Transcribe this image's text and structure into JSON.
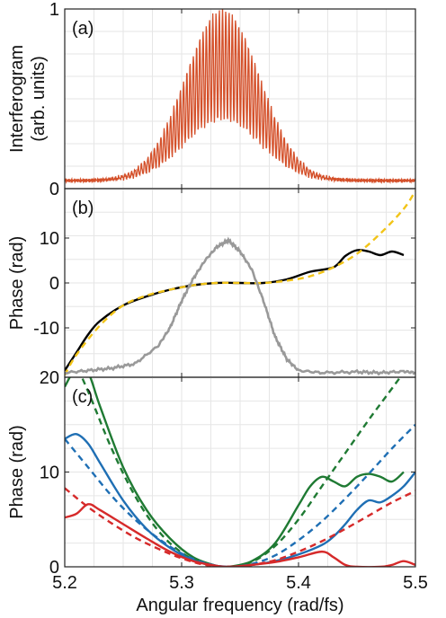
{
  "chart_data": [
    {
      "panel_label": "(a)",
      "type": "line",
      "xlim": [
        5.2,
        5.5
      ],
      "ylim": [
        0,
        1
      ],
      "grid": true,
      "xlabel": "",
      "ylabel": [
        "Interferogram",
        "(arb. units)"
      ],
      "x_ticks": [
        5.2,
        5.3,
        5.4,
        5.5
      ],
      "y_ticks": [
        0,
        1
      ],
      "y_tick_labels": [
        "0",
        "1"
      ],
      "series": [
        {
          "color": "#d4502a",
          "model": "gaussian_fringes",
          "center": 5.335,
          "sigma": 0.032,
          "peak": 1.0,
          "baseline": 0.045,
          "fringe_count_per_unit": 360,
          "x": [
            5.2,
            5.23,
            5.26,
            5.28,
            5.3,
            5.32,
            5.335,
            5.35,
            5.37,
            5.39,
            5.41,
            5.44,
            5.47,
            5.5
          ],
          "y_envelope": [
            0.04,
            0.04,
            0.1,
            0.25,
            0.55,
            0.88,
            1.0,
            0.88,
            0.55,
            0.25,
            0.1,
            0.04,
            0.04,
            0.04
          ]
        }
      ]
    },
    {
      "panel_label": "(b)",
      "type": "line",
      "xlim": [
        5.2,
        5.5
      ],
      "ylim": [
        -21,
        21
      ],
      "grid": true,
      "xlabel": "",
      "ylabel": "Phase (rad)",
      "x_ticks": [
        5.2,
        5.3,
        5.4,
        5.5
      ],
      "y_ticks": [
        -10,
        0,
        10
      ],
      "y_tick_labels": [
        "-10",
        "0",
        "10"
      ],
      "series": [
        {
          "color": "#000000",
          "style": "solid",
          "x": [
            5.2,
            5.21,
            5.22,
            5.23,
            5.25,
            5.27,
            5.29,
            5.31,
            5.33,
            5.35,
            5.37,
            5.39,
            5.41,
            5.43,
            5.44,
            5.45,
            5.46,
            5.47,
            5.48,
            5.49
          ],
          "y": [
            -19.5,
            -15.5,
            -11.5,
            -8.5,
            -5.0,
            -3.0,
            -1.5,
            -0.5,
            0.0,
            0.0,
            0.0,
            0.8,
            2.5,
            3.5,
            6.0,
            7.3,
            7.0,
            6.2,
            7.0,
            6.2
          ]
        },
        {
          "color": "#f2c418",
          "style": "dashed",
          "x": [
            5.2,
            5.21,
            5.23,
            5.25,
            5.27,
            5.29,
            5.31,
            5.33,
            5.35,
            5.37,
            5.39,
            5.41,
            5.43,
            5.45,
            5.47,
            5.49,
            5.5
          ],
          "y": [
            -20.5,
            -16.0,
            -9.5,
            -5.0,
            -2.8,
            -1.5,
            -0.5,
            0.0,
            0.0,
            0.0,
            0.5,
            1.5,
            3.5,
            6.5,
            11.0,
            16.5,
            20.5
          ]
        },
        {
          "color": "#999999",
          "style": "solid",
          "x": [
            5.2,
            5.22,
            5.24,
            5.26,
            5.28,
            5.29,
            5.3,
            5.31,
            5.32,
            5.33,
            5.34,
            5.35,
            5.36,
            5.37,
            5.38,
            5.39,
            5.4,
            5.42,
            5.45,
            5.47,
            5.49,
            5.5
          ],
          "y": [
            -20.0,
            -19.5,
            -19.0,
            -18.0,
            -14.0,
            -10.0,
            -4.0,
            1.0,
            5.0,
            8.0,
            9.5,
            7.0,
            3.0,
            -4.0,
            -12.0,
            -17.0,
            -19.5,
            -20.0,
            -19.8,
            -20.0,
            -19.7,
            -20.0
          ]
        }
      ]
    },
    {
      "panel_label": "(c)",
      "type": "line",
      "xlim": [
        5.2,
        5.5
      ],
      "ylim": [
        0,
        20
      ],
      "grid": true,
      "xlabel": "Angular frequency (rad/fs)",
      "ylabel": "Phase (rad)",
      "x_ticks": [
        5.2,
        5.3,
        5.4,
        5.5
      ],
      "x_tick_labels": [
        "5.2",
        "5.3",
        "5.4",
        "5.5"
      ],
      "y_ticks": [
        0,
        10,
        20
      ],
      "y_tick_labels": [
        "0",
        "10",
        "20"
      ],
      "series": [
        {
          "color": "#1f7a33",
          "style": "solid",
          "x": [
            5.2,
            5.21,
            5.22,
            5.23,
            5.25,
            5.27,
            5.29,
            5.31,
            5.33,
            5.34,
            5.36,
            5.38,
            5.4,
            5.41,
            5.42,
            5.43,
            5.44,
            5.45,
            5.46,
            5.47,
            5.48,
            5.49
          ],
          "y": [
            19.0,
            21.0,
            20.5,
            17.0,
            10.5,
            6.0,
            3.0,
            1.0,
            0.1,
            0.0,
            0.6,
            2.5,
            6.5,
            8.5,
            9.5,
            9.0,
            8.5,
            9.5,
            9.8,
            9.5,
            9.0,
            10.0
          ]
        },
        {
          "color": "#1f7a33",
          "style": "dashed",
          "x": [
            5.2,
            5.22,
            5.24,
            5.26,
            5.28,
            5.3,
            5.32,
            5.34,
            5.36,
            5.38,
            5.4,
            5.42,
            5.44,
            5.46,
            5.475,
            5.49
          ],
          "y": [
            24.0,
            18.5,
            12.5,
            7.5,
            3.8,
            1.5,
            0.3,
            0.0,
            0.5,
            2.2,
            5.0,
            8.5,
            12.0,
            15.5,
            18.0,
            20.5
          ]
        },
        {
          "color": "#1f6fb4",
          "style": "solid",
          "x": [
            5.2,
            5.21,
            5.22,
            5.23,
            5.25,
            5.27,
            5.29,
            5.31,
            5.33,
            5.34,
            5.36,
            5.38,
            5.4,
            5.42,
            5.43,
            5.44,
            5.45,
            5.46,
            5.47,
            5.48,
            5.49,
            5.5
          ],
          "y": [
            13.5,
            14.0,
            13.0,
            11.0,
            7.0,
            4.0,
            2.0,
            0.7,
            0.1,
            0.0,
            0.2,
            0.6,
            1.3,
            2.3,
            3.2,
            4.5,
            6.0,
            7.0,
            6.8,
            7.5,
            8.5,
            10.0
          ]
        },
        {
          "color": "#1f6fb4",
          "style": "dashed",
          "x": [
            5.2,
            5.22,
            5.24,
            5.26,
            5.28,
            5.3,
            5.32,
            5.34,
            5.36,
            5.38,
            5.4,
            5.42,
            5.44,
            5.46,
            5.48,
            5.5
          ],
          "y": [
            13.5,
            10.5,
            7.5,
            5.0,
            3.0,
            1.4,
            0.4,
            0.0,
            0.3,
            1.2,
            2.8,
            4.8,
            7.2,
            9.8,
            12.5,
            15.0
          ]
        },
        {
          "color": "#d62a2a",
          "style": "solid",
          "x": [
            5.2,
            5.21,
            5.22,
            5.23,
            5.25,
            5.27,
            5.29,
            5.31,
            5.33,
            5.34,
            5.36,
            5.38,
            5.4,
            5.42,
            5.43,
            5.44,
            5.45,
            5.47,
            5.48,
            5.49,
            5.5
          ],
          "y": [
            5.2,
            5.6,
            6.6,
            6.0,
            4.5,
            3.0,
            1.6,
            0.6,
            0.1,
            0.0,
            0.2,
            0.5,
            1.0,
            1.6,
            1.0,
            0.2,
            0.0,
            0.0,
            0.2,
            0.6,
            0.2
          ]
        },
        {
          "color": "#d62a2a",
          "style": "dashed",
          "x": [
            5.2,
            5.22,
            5.24,
            5.26,
            5.28,
            5.3,
            5.32,
            5.34,
            5.36,
            5.38,
            5.4,
            5.42,
            5.44,
            5.46,
            5.48,
            5.5
          ],
          "y": [
            8.3,
            6.3,
            4.6,
            3.1,
            1.9,
            0.9,
            0.2,
            0.0,
            0.2,
            0.7,
            1.6,
            2.7,
            4.0,
            5.4,
            6.8,
            8.0
          ]
        }
      ]
    }
  ]
}
